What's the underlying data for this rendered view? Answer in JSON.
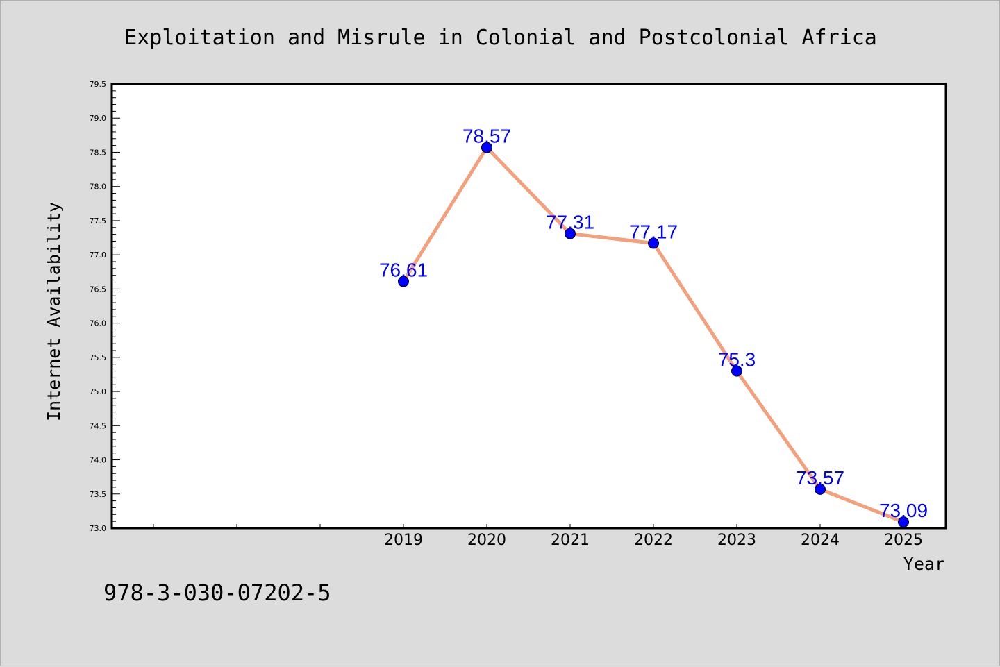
{
  "chart_data": {
    "type": "line",
    "title": "Exploitation and Misrule in Colonial and Postcolonial Africa",
    "xlabel": "Year",
    "ylabel": "Internet Availability",
    "x": [
      "2019",
      "2020",
      "2021",
      "2022",
      "2023",
      "2024",
      "2025"
    ],
    "series": [
      {
        "values": [
          76.61,
          78.57,
          77.31,
          77.17,
          75.3,
          73.57,
          73.09
        ]
      }
    ],
    "data_labels": [
      "76.61",
      "78.57",
      "77.31",
      "77.17",
      "75.3",
      "73.57",
      "73.09"
    ],
    "ylim": [
      73.0,
      79.5
    ],
    "y_ticks": [
      "73.0",
      "73.5",
      "74.0",
      "74.5",
      "75.0",
      "75.5",
      "76.0",
      "76.5",
      "77.0",
      "77.5",
      "78.0",
      "78.5",
      "79.0",
      "79.5"
    ],
    "grid": false,
    "legend": "none",
    "colors": {
      "line": "#f4a07c",
      "marker": "#0000ff",
      "label": "#0000ff",
      "background": "#dcdcdc",
      "plot_background": "#ffffff"
    }
  },
  "footer": {
    "isbn": "978-3-030-07202-5"
  }
}
